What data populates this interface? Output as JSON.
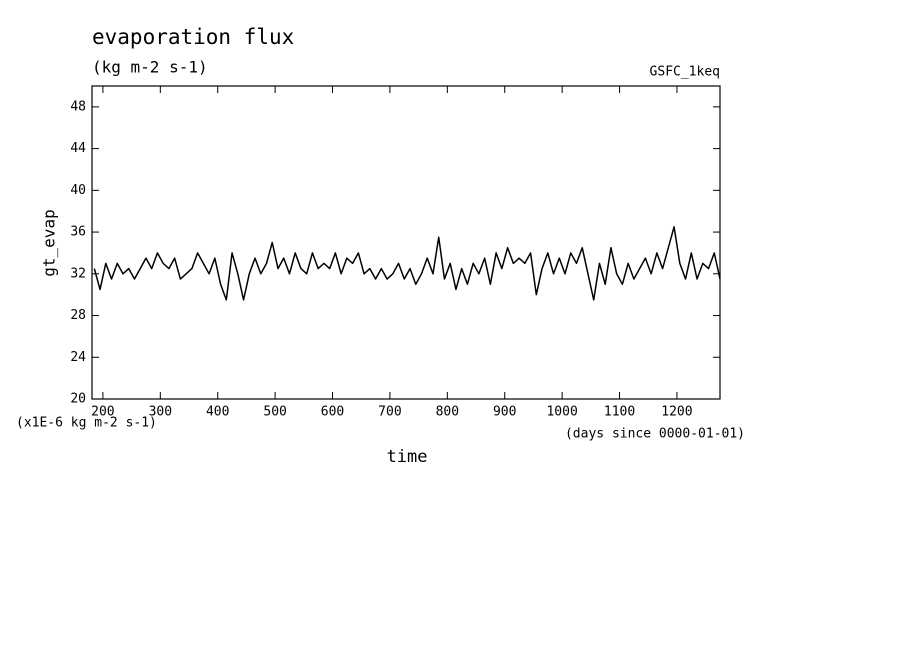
{
  "chart_data": {
    "type": "line",
    "title": "evaporation flux",
    "subtitle": "(kg m-2 s-1)",
    "annotation": "GSFC_1keq",
    "y_label": "gt_evap",
    "y_units": "(x1E-6 kg m-2 s-1)",
    "x_label": "time",
    "x_units": "(days since 0000-01-01)",
    "color": "#000000",
    "x": [
      185,
      195,
      205,
      215,
      225,
      235,
      245,
      255,
      265,
      275,
      285,
      295,
      305,
      315,
      325,
      335,
      345,
      355,
      365,
      375,
      385,
      395,
      405,
      415,
      425,
      435,
      445,
      455,
      465,
      475,
      485,
      495,
      505,
      515,
      525,
      535,
      545,
      555,
      565,
      575,
      585,
      595,
      605,
      615,
      625,
      635,
      645,
      655,
      665,
      675,
      685,
      695,
      705,
      715,
      725,
      735,
      745,
      755,
      765,
      775,
      785,
      795,
      805,
      815,
      825,
      835,
      845,
      855,
      865,
      875,
      885,
      895,
      905,
      915,
      925,
      935,
      945,
      955,
      965,
      975,
      985,
      995,
      1005,
      1015,
      1025,
      1035,
      1045,
      1055,
      1065,
      1075,
      1085,
      1095,
      1105,
      1115,
      1125,
      1135,
      1145,
      1155,
      1165,
      1175,
      1185,
      1195,
      1205,
      1215,
      1225,
      1235,
      1245,
      1255,
      1265,
      1275
    ],
    "values": [
      32.5,
      30.5,
      33,
      31.5,
      33,
      32,
      32.5,
      31.5,
      32.5,
      33.5,
      32.5,
      34,
      33,
      32.5,
      33.5,
      31.5,
      32,
      32.5,
      34,
      33,
      32,
      33.5,
      31,
      29.5,
      34,
      32,
      29.5,
      32,
      33.5,
      32,
      33,
      35,
      32.5,
      33.5,
      32,
      34,
      32.5,
      32,
      34,
      32.5,
      33,
      32.5,
      34,
      32,
      33.5,
      33,
      34,
      32,
      32.5,
      31.5,
      32.5,
      31.5,
      32,
      33,
      31.5,
      32.5,
      31,
      32,
      33.5,
      32,
      35.5,
      31.5,
      33,
      30.5,
      32.5,
      31,
      33,
      32,
      33.5,
      31,
      34,
      32.5,
      34.5,
      33,
      33.5,
      33,
      34,
      30,
      32.5,
      34,
      32,
      33.5,
      32,
      34,
      33,
      34.5,
      32,
      29.5,
      33,
      31,
      34.5,
      32,
      31,
      33,
      31.5,
      32.5,
      33.5,
      32,
      34,
      32.5,
      34.5,
      36.5,
      33,
      31.5,
      34,
      31.5,
      33,
      32.5,
      34,
      31.5
    ],
    "xlim": [
      181,
      1275
    ],
    "ylim": [
      20,
      50
    ],
    "xticks": [
      200,
      300,
      400,
      500,
      600,
      700,
      800,
      900,
      1000,
      1100,
      1200
    ],
    "yticks": [
      20,
      24,
      28,
      32,
      36,
      40,
      44,
      48
    ]
  }
}
